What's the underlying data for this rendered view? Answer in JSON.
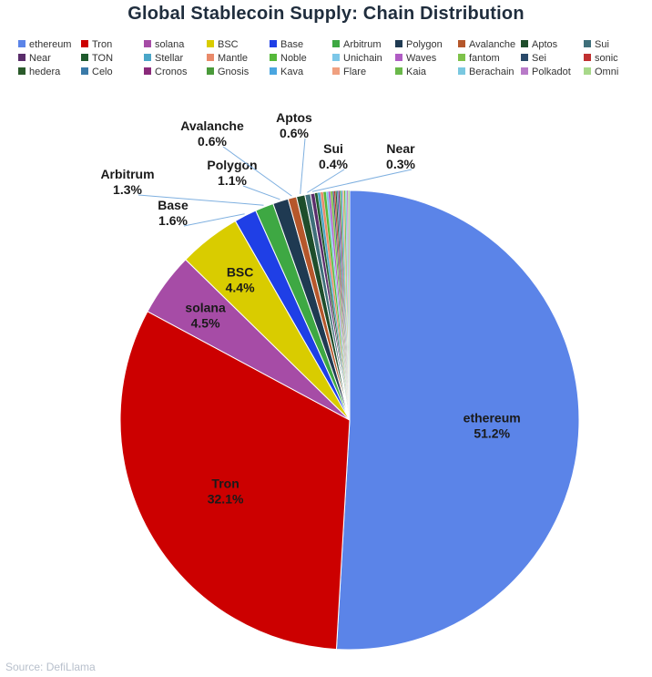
{
  "chart_data": {
    "type": "pie",
    "title": "Global Stablecoin Supply: Chain Distribution",
    "legend_position": "top",
    "slices": [
      {
        "name": "ethereum",
        "value": 51.2,
        "color": "#5b84e8",
        "label": "51.2%"
      },
      {
        "name": "Tron",
        "value": 32.1,
        "color": "#cc0000",
        "label": "32.1%"
      },
      {
        "name": "solana",
        "value": 4.5,
        "color": "#a64ca6",
        "label": "4.5%"
      },
      {
        "name": "BSC",
        "value": 4.4,
        "color": "#d9cc00",
        "label": "4.4%"
      },
      {
        "name": "Base",
        "value": 1.6,
        "color": "#1f3fe6",
        "label": "1.6%"
      },
      {
        "name": "Arbitrum",
        "value": 1.3,
        "color": "#3ea843",
        "label": "1.3%"
      },
      {
        "name": "Polygon",
        "value": 1.1,
        "color": "#1f3a52",
        "label": "1.1%"
      },
      {
        "name": "Avalanche",
        "value": 0.6,
        "color": "#b5572b",
        "label": "0.6%"
      },
      {
        "name": "Aptos",
        "value": 0.6,
        "color": "#1e4d2b",
        "label": "0.6%"
      },
      {
        "name": "Sui",
        "value": 0.4,
        "color": "#3f6f7a",
        "label": "0.4%"
      },
      {
        "name": "Near",
        "value": 0.3,
        "color": "#5a2d6b",
        "label": "0.3%"
      },
      {
        "name": "TON",
        "value": 0.2,
        "color": "#1f5b2d",
        "color_note": "",
        "label": ""
      },
      {
        "name": "Stellar",
        "value": 0.2,
        "color": "#4aa6c8",
        "label": ""
      },
      {
        "name": "Mantle",
        "value": 0.2,
        "color": "#e98a6a",
        "label": ""
      },
      {
        "name": "Noble",
        "value": 0.2,
        "color": "#55b83a",
        "label": ""
      },
      {
        "name": "Unichain",
        "value": 0.15,
        "color": "#7cc7e8",
        "label": ""
      },
      {
        "name": "Waves",
        "value": 0.15,
        "color": "#b05cc4",
        "label": ""
      },
      {
        "name": "fantom",
        "value": 0.15,
        "color": "#7ec24a",
        "label": ""
      },
      {
        "name": "Sei",
        "value": 0.1,
        "color": "#2a4a6a",
        "label": ""
      },
      {
        "name": "sonic",
        "value": 0.1,
        "color": "#c03030",
        "label": ""
      },
      {
        "name": "hedera",
        "value": 0.1,
        "color": "#2a5a2a",
        "label": ""
      },
      {
        "name": "Celo",
        "value": 0.1,
        "color": "#3a7aa8",
        "label": ""
      },
      {
        "name": "Cronos",
        "value": 0.1,
        "color": "#8a2a7a",
        "label": ""
      },
      {
        "name": "Gnosis",
        "value": 0.1,
        "color": "#4a9a3a",
        "label": ""
      },
      {
        "name": "Kava",
        "value": 0.1,
        "color": "#4aa6e0",
        "label": ""
      },
      {
        "name": "Flare",
        "value": 0.1,
        "color": "#f0a080",
        "label": ""
      },
      {
        "name": "Kaia",
        "value": 0.1,
        "color": "#6ab84a",
        "label": ""
      },
      {
        "name": "Berachain",
        "value": 0.1,
        "color": "#7ac8e0",
        "label": ""
      },
      {
        "name": "Polkadot",
        "value": 0.1,
        "color": "#b87ac8",
        "label": ""
      },
      {
        "name": "Omni",
        "value": 0.1,
        "color": "#a8d88a",
        "label": ""
      }
    ]
  },
  "source_text": "Source: DefiLlama"
}
